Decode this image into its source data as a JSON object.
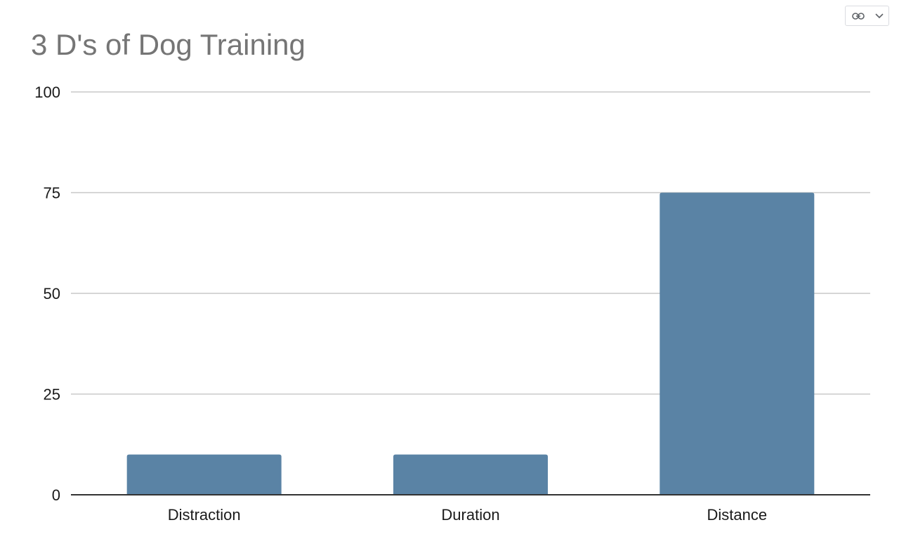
{
  "toolbar": {
    "link_icon": "link-icon",
    "dropdown_icon": "chevron-down-icon"
  },
  "colors": {
    "bar": "#5a83a5",
    "grid": "#c8c8c8",
    "axis": "#333333",
    "title": "#757575"
  },
  "chart_data": {
    "type": "bar",
    "title": "3 D's of Dog Training",
    "xlabel": "",
    "ylabel": "",
    "categories": [
      "Distraction",
      "Duration",
      "Distance"
    ],
    "values": [
      10,
      10,
      75
    ],
    "ylim": [
      0,
      100
    ],
    "yticks": [
      0,
      25,
      50,
      75,
      100
    ],
    "grid": true,
    "legend": "none"
  }
}
